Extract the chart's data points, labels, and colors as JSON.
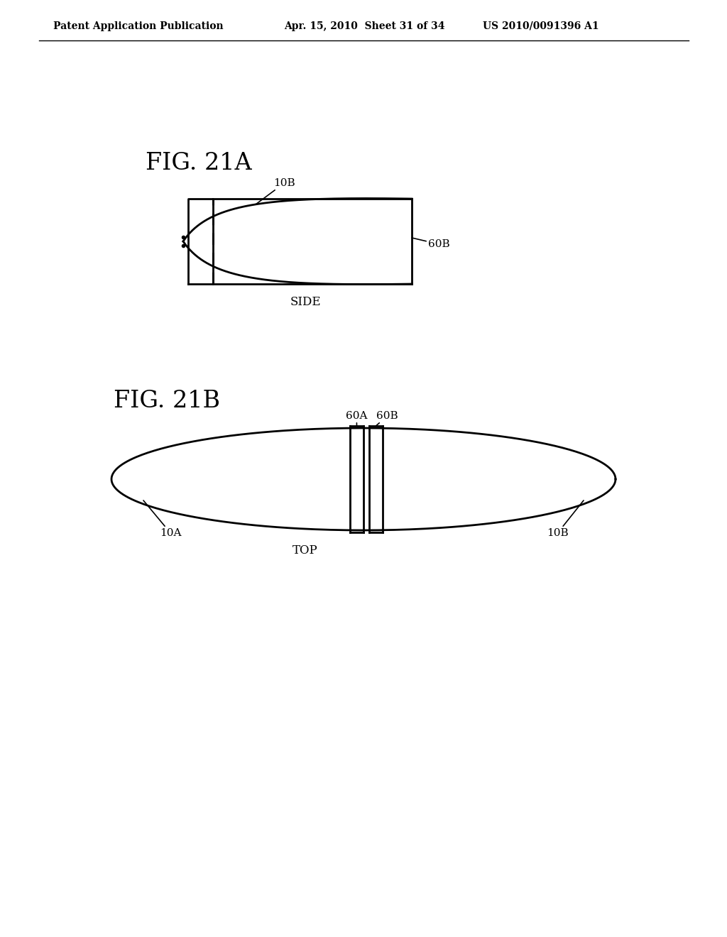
{
  "bg_color": "#ffffff",
  "line_color": "#000000",
  "header_left": "Patent Application Publication",
  "header_mid": "Apr. 15, 2010  Sheet 31 of 34",
  "header_right": "US 2010/0091396 A1",
  "fig21a_label": "FIG. 21A",
  "fig21b_label": "FIG. 21B",
  "side_label": "SIDE",
  "top_label": "TOP",
  "label_10B_side": "10B",
  "label_60B_side": "60B",
  "label_60A_top": "60A",
  "label_60B_top": "60B",
  "label_10A_top": "10A",
  "label_10B_top": "10B"
}
